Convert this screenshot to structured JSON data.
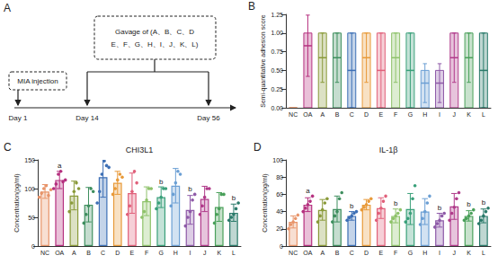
{
  "diagram": {
    "label": "A",
    "mia_box": "MIA injection",
    "gavage_box": [
      "Gavage of (A、B、C、D",
      "E、F、G、H、I、J、K、L)"
    ],
    "timepoints": [
      "Day 1",
      "Day 14",
      "Day 56"
    ]
  },
  "chart_data": [
    {
      "panel": "B",
      "type": "box",
      "ylabel": "Semi-quantitative adhesion score",
      "categories": [
        "NC",
        "OA",
        "A",
        "B",
        "C",
        "D",
        "E",
        "F",
        "G",
        "H",
        "I",
        "J",
        "K",
        "L"
      ],
      "colors": [
        "#e8956b",
        "#b5307f",
        "#8a9a3a",
        "#3f8f5f",
        "#3d6fb5",
        "#e89a3a",
        "#e0607a",
        "#8ec26a",
        "#3aa07a",
        "#6b9fd4",
        "#8e5aa8",
        "#b03a8a",
        "#4aa05a",
        "#2a7a6a"
      ],
      "min": [
        0,
        0,
        0,
        0,
        0,
        0,
        0,
        0,
        0,
        0,
        0,
        0,
        0,
        0
      ],
      "max": [
        0,
        1,
        1,
        1,
        1,
        1,
        1,
        1,
        1,
        0.5,
        0.5,
        1,
        1,
        1
      ],
      "values": [
        0,
        0.83,
        0.67,
        0.67,
        0.5,
        0.67,
        0.5,
        0.67,
        0.5,
        0.33,
        0.33,
        0.67,
        0.67,
        0.5
      ],
      "errors": [
        0,
        0.41,
        0.33,
        0.33,
        0.5,
        0.33,
        0.5,
        0.33,
        0.5,
        0.26,
        0.26,
        0.33,
        0.33,
        0.5
      ],
      "ylim": [
        0,
        1.25
      ],
      "yticks": [
        {
          "value": 0,
          "label": "0.00"
        },
        {
          "value": 0.25,
          "label": "0.25"
        },
        {
          "value": 0.5,
          "label": "0.50"
        },
        {
          "value": 0.75,
          "label": "0.75"
        },
        {
          "value": 1,
          "label": "1.00"
        },
        {
          "value": 1.25,
          "label": "1.25"
        }
      ],
      "grid": false
    },
    {
      "panel": "C",
      "type": "bar",
      "title": "CHI3L1",
      "ylabel": "Concentration(pg/ml)",
      "categories": [
        "NC",
        "OA",
        "A",
        "B",
        "C",
        "D",
        "E",
        "F",
        "G",
        "H",
        "I",
        "J",
        "K",
        "L"
      ],
      "colors": [
        "#e8956b",
        "#b5307f",
        "#8a9a3a",
        "#3f8f5f",
        "#3d6fb5",
        "#e89a3a",
        "#e0607a",
        "#8ec26a",
        "#3aa07a",
        "#6b9fd4",
        "#8e5aa8",
        "#b03a8a",
        "#4aa05a",
        "#2a7a6a"
      ],
      "values": [
        95,
        115,
        88,
        72,
        120,
        110,
        92,
        78,
        85,
        105,
        63,
        82,
        68,
        58
      ],
      "errors": [
        12,
        15,
        25,
        30,
        35,
        20,
        35,
        25,
        18,
        30,
        25,
        22,
        25,
        15
      ],
      "points": [
        [
          85,
          92,
          100,
          105,
          88,
          98
        ],
        [
          100,
          108,
          125,
          130,
          112,
          115
        ],
        [
          60,
          75,
          95,
          110,
          100
        ],
        [
          40,
          55,
          70,
          100,
          95
        ],
        [
          75,
          95,
          125,
          148,
          140,
          137
        ],
        [
          90,
          100,
          115,
          125,
          120
        ],
        [
          55,
          70,
          95,
          130,
          110
        ],
        [
          50,
          60,
          80,
          100,
          100
        ],
        [
          65,
          75,
          85,
          100,
          100
        ],
        [
          70,
          90,
          110,
          130,
          125
        ],
        [
          35,
          50,
          60,
          80,
          90
        ],
        [
          55,
          70,
          85,
          100,
          100
        ],
        [
          40,
          55,
          65,
          90,
          90
        ],
        [
          45,
          50,
          55,
          65,
          75
        ]
      ],
      "annotations": [
        {
          "category": "OA",
          "text": "a"
        },
        {
          "category": "G",
          "text": "b"
        },
        {
          "category": "I",
          "text": "b"
        },
        {
          "category": "L",
          "text": "b"
        }
      ],
      "ylim": [
        0,
        150
      ],
      "yticks": [
        0,
        50,
        100,
        150
      ],
      "grid": false
    },
    {
      "panel": "D",
      "type": "bar",
      "title": "IL-1β",
      "ylabel": "Concentration(pg/ml)",
      "categories": [
        "NC",
        "OA",
        "A",
        "B",
        "C",
        "D",
        "E",
        "F",
        "G",
        "H",
        "I",
        "J",
        "K",
        "L"
      ],
      "colors": [
        "#e8956b",
        "#b5307f",
        "#8a9a3a",
        "#3f8f5f",
        "#3d6fb5",
        "#e89a3a",
        "#e0607a",
        "#8ec26a",
        "#3aa07a",
        "#6b9fd4",
        "#8e5aa8",
        "#b03a8a",
        "#4aa05a",
        "#2a7a6a"
      ],
      "values": [
        28,
        48,
        42,
        43,
        35,
        48,
        44,
        35,
        43,
        40,
        30,
        46,
        35,
        35
      ],
      "errors": [
        7,
        8,
        12,
        15,
        5,
        6,
        12,
        8,
        18,
        15,
        8,
        15,
        6,
        8
      ],
      "points": [
        [
          20,
          25,
          28,
          32,
          36
        ],
        [
          40,
          44,
          48,
          52,
          58
        ],
        [
          28,
          35,
          42,
          50,
          55
        ],
        [
          28,
          35,
          40,
          55,
          62
        ],
        [
          30,
          33,
          35,
          38,
          40
        ],
        [
          42,
          45,
          48,
          52,
          55
        ],
        [
          30,
          38,
          44,
          52,
          58
        ],
        [
          28,
          32,
          35,
          38,
          42
        ],
        [
          28,
          32,
          38,
          55,
          70
        ],
        [
          25,
          32,
          40,
          50,
          58
        ],
        [
          22,
          26,
          30,
          35,
          38
        ],
        [
          30,
          38,
          45,
          55,
          62
        ],
        [
          30,
          32,
          35,
          38,
          42
        ],
        [
          26,
          30,
          35,
          40,
          44
        ]
      ],
      "annotations": [
        {
          "category": "OA",
          "text": "a"
        },
        {
          "category": "C",
          "text": "b"
        },
        {
          "category": "F",
          "text": "b"
        },
        {
          "category": "I",
          "text": "b"
        },
        {
          "category": "K",
          "text": "b"
        },
        {
          "category": "L",
          "text": "b"
        }
      ],
      "ylim": [
        0,
        100
      ],
      "yticks": [
        0,
        20,
        40,
        60,
        80,
        100
      ],
      "grid": false
    }
  ]
}
